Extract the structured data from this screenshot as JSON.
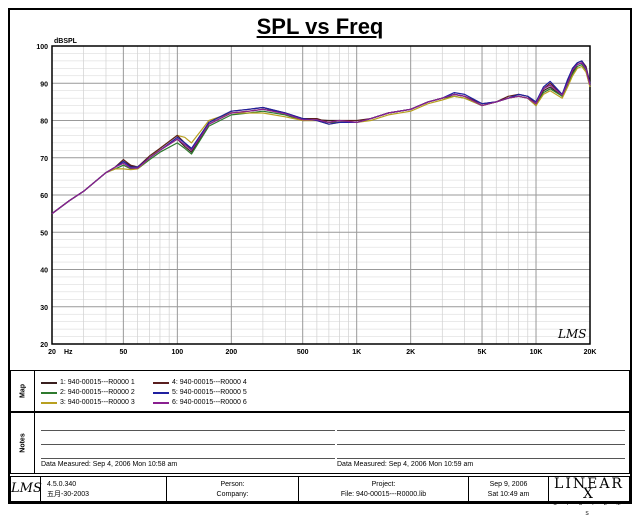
{
  "chart_data": {
    "type": "line",
    "title": "SPL vs Freq",
    "ylabel": "dBSPL",
    "xscale": "log",
    "xlim": [
      20,
      20000
    ],
    "ylim": [
      20,
      100
    ],
    "grid": true,
    "x_tick_labels": [
      "20",
      "Hz",
      "50",
      "100",
      "200",
      "500",
      "1K",
      "2K",
      "5K",
      "10K",
      "20K"
    ],
    "y_tick_labels": [
      "20",
      "30",
      "40",
      "50",
      "60",
      "70",
      "80",
      "90",
      "100"
    ],
    "x": [
      20,
      25,
      30,
      40,
      45,
      50,
      55,
      60,
      70,
      80,
      100,
      110,
      120,
      150,
      200,
      250,
      300,
      400,
      500,
      600,
      700,
      800,
      1000,
      1200,
      1500,
      2000,
      2500,
      3000,
      3500,
      4000,
      5000,
      6000,
      7000,
      8000,
      9000,
      10000,
      11000,
      12000,
      14000,
      15000,
      16000,
      17000,
      18000,
      19000,
      20000
    ],
    "series": [
      {
        "name": "1: 940-00015---R0000   1",
        "color": "#3a1f1f",
        "values": [
          55,
          58.5,
          61,
          66,
          67.5,
          69,
          67.8,
          67.5,
          70,
          72,
          75,
          73,
          71.5,
          79,
          82,
          82.5,
          83,
          82,
          80,
          80.2,
          80,
          80,
          79.5,
          80.5,
          82,
          83,
          85,
          86,
          87,
          86.5,
          84,
          85,
          86,
          86.5,
          86,
          84,
          88,
          89,
          86.5,
          90,
          93,
          95,
          95.5,
          94,
          90
        ]
      },
      {
        "name": "2: 940-00015---R0000   2",
        "color": "#2e7a2e",
        "values": [
          55,
          58.5,
          61,
          66,
          67,
          68,
          67,
          67,
          69.5,
          71.5,
          74,
          72.5,
          71,
          78.5,
          81.5,
          82,
          82.5,
          81.5,
          80,
          80,
          79.5,
          79.5,
          79.5,
          80.5,
          82,
          83,
          85,
          86,
          86.5,
          86,
          84,
          85,
          86,
          86.5,
          86,
          84,
          87.5,
          88.5,
          86.5,
          89.5,
          92.5,
          94.5,
          95,
          93.5,
          89
        ]
      },
      {
        "name": "3: 940-00015---R0000   3",
        "color": "#b8a020",
        "values": [
          55,
          58.5,
          61,
          66,
          67,
          67,
          66.8,
          67,
          70,
          72.5,
          76,
          75.5,
          74,
          80,
          82,
          82,
          82,
          81,
          80,
          80,
          79,
          79.5,
          79.5,
          80,
          81.5,
          82.5,
          84.5,
          85.5,
          86.5,
          86,
          84,
          85,
          86,
          86.5,
          86,
          84,
          87,
          88,
          86,
          89,
          92,
          94,
          94.5,
          93,
          89
        ]
      },
      {
        "name": "4: 940-00015---R0000   4",
        "color": "#5a1f1f",
        "values": [
          55,
          58.5,
          61,
          66,
          67.5,
          69.5,
          68,
          67.5,
          70.5,
          72.5,
          76,
          74,
          72,
          79.5,
          82.5,
          83,
          83.5,
          82,
          80.5,
          80.5,
          79.5,
          80,
          80,
          80.5,
          82,
          83,
          85,
          86,
          87,
          86.5,
          84.5,
          85,
          86.5,
          87,
          86.5,
          84.5,
          88.5,
          90,
          87,
          90.5,
          94,
          95.5,
          96,
          94.5,
          90
        ]
      },
      {
        "name": "5: 940-00015---R0000   5",
        "color": "#2020a0",
        "values": [
          55,
          58.5,
          61,
          66,
          67.5,
          69,
          67.5,
          67.5,
          70,
          72,
          75.5,
          74,
          72.5,
          79.5,
          82.5,
          83,
          83.5,
          82,
          80.5,
          80,
          79,
          79.5,
          79.5,
          80.5,
          82,
          83,
          85,
          86,
          87.5,
          87,
          84.5,
          85,
          86,
          87,
          86.5,
          85,
          89,
          90.5,
          87,
          91,
          94,
          95.5,
          96,
          94,
          90
        ]
      },
      {
        "name": "6: 940-00015---R0000   6",
        "color": "#8a2090",
        "values": [
          55,
          58.5,
          61,
          66,
          67.5,
          68.5,
          67.2,
          67.2,
          70,
          72,
          75,
          73.5,
          72,
          79,
          82,
          82.5,
          83,
          81.8,
          80.2,
          80.2,
          79.5,
          80,
          79.5,
          80.5,
          82,
          83,
          85,
          86,
          87,
          86.5,
          84,
          85,
          86,
          86.5,
          86,
          84.5,
          88.5,
          89.5,
          86.8,
          90,
          93.5,
          95,
          95.5,
          93.8,
          89.5
        ]
      }
    ]
  },
  "branding": {
    "plot_logo": "LMS",
    "footer_logo": "LMS",
    "linearx": "LINEAR X",
    "linearx_sub": "S Y S T E M S"
  },
  "legend_panel": {
    "label": "Map"
  },
  "notes_panel": {
    "label": "Notes",
    "measured_left": "Data Measured: Sep  4, 2006  Mon 10:58 am",
    "measured_right": "Data Measured: Sep  4, 2006  Mon 10:59 am"
  },
  "footer": {
    "version": "4.5.0.340",
    "version_date": "五月-30-2003",
    "person_label": "Person:",
    "company_label": "Company:",
    "project_label": "Project:",
    "file_label": "File: 940-00015---R0000.lib",
    "date": "Sep  9, 2006",
    "time": "Sat 10:49 am"
  }
}
